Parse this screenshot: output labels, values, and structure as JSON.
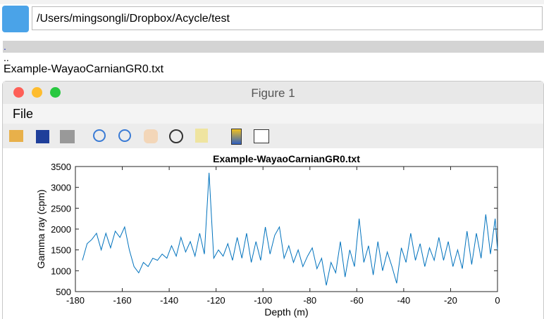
{
  "path": "/Users/mingsongli/Dropbox/Acycle/test",
  "file_list": [
    ".",
    "..",
    "Example-WayaoCarnianGR0.txt"
  ],
  "window": {
    "title": "Figure 1",
    "menu": [
      "File"
    ]
  },
  "chart_data": {
    "type": "line",
    "title": "Example-WayaoCarnianGR0.txt",
    "x_label": "Depth (m)",
    "y_label": "Gamma ray (cpm)",
    "x": [
      -177,
      -175,
      -173,
      -171,
      -169,
      -167,
      -165,
      -163,
      -161,
      -159,
      -157,
      -155,
      -153,
      -151,
      -149,
      -147,
      -145,
      -143,
      -141,
      -139,
      -137,
      -135,
      -133,
      -131,
      -129,
      -127,
      -125,
      -123,
      -121,
      -119,
      -117,
      -115,
      -113,
      -111,
      -109,
      -107,
      -105,
      -103,
      -101,
      -99,
      -97,
      -95,
      -93,
      -91,
      -89,
      -87,
      -85,
      -83,
      -81,
      -79,
      -77,
      -75,
      -73,
      -71,
      -69,
      -67,
      -65,
      -63,
      -61,
      -59,
      -57,
      -55,
      -53,
      -51,
      -49,
      -47,
      -45,
      -43,
      -41,
      -39,
      -37,
      -35,
      -33,
      -31,
      -29,
      -27,
      -25,
      -23,
      -21,
      -19,
      -17,
      -15,
      -13,
      -11,
      -9,
      -7,
      -5,
      -3,
      -1,
      0
    ],
    "series": [
      {
        "color": "#0072bd",
        "values": [
          1250,
          1650,
          1750,
          1900,
          1500,
          1900,
          1550,
          1950,
          1800,
          2050,
          1500,
          1100,
          950,
          1200,
          1100,
          1300,
          1250,
          1400,
          1300,
          1600,
          1350,
          1800,
          1450,
          1700,
          1350,
          1900,
          1400,
          3350,
          1300,
          1500,
          1350,
          1650,
          1250,
          1800,
          1300,
          1900,
          1200,
          1700,
          1250,
          2050,
          1400,
          1850,
          2050,
          1300,
          1600,
          1200,
          1500,
          1100,
          1350,
          1550,
          1050,
          1300,
          650,
          1200,
          950,
          1700,
          850,
          1500,
          1100,
          2250,
          1200,
          1600,
          900,
          1700,
          1000,
          1450,
          1100,
          700,
          1550,
          1200,
          1900,
          1250,
          1650,
          1100,
          1550,
          1250,
          1800,
          1250,
          1700,
          1100,
          1500,
          1050,
          1950,
          1150,
          1900,
          1300,
          2350,
          1400,
          2250,
          1500
        ]
      }
    ],
    "xlim": [
      -180,
      0
    ],
    "ylim": [
      500,
      3500
    ],
    "xticks": [
      -180,
      -160,
      -140,
      -120,
      -100,
      -80,
      -60,
      -40,
      -20,
      0
    ],
    "yticks": [
      500,
      1000,
      1500,
      2000,
      2500,
      3000,
      3500
    ]
  }
}
